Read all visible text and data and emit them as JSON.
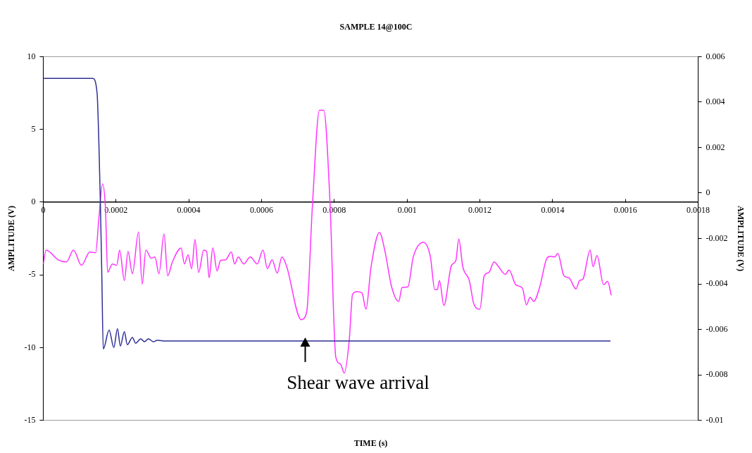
{
  "chart_data": {
    "type": "line",
    "title": "SAMPLE 14@100C",
    "xlabel": "TIME (s)",
    "ylabel": "AMPLITUDE (V)",
    "y2label": "AMPLITUDE (V)",
    "xlim": [
      0,
      0.0018
    ],
    "xticks": [
      0,
      0.0002,
      0.0004,
      0.0006,
      0.0008,
      0.001,
      0.0012,
      0.0014,
      0.0016,
      0.0018
    ],
    "ylim": [
      -15,
      10
    ],
    "yticks": [
      -15,
      -10,
      -5,
      0,
      5,
      10
    ],
    "y2lim": [
      -0.01,
      0.006
    ],
    "y2ticks": [
      -0.01,
      -0.008,
      -0.006,
      -0.004,
      -0.002,
      0,
      0.002,
      0.004,
      0.006
    ],
    "grid": false,
    "legend": false,
    "marker": "none",
    "line_style": "solid",
    "annotations": [
      {
        "text": "Shear wave arrival",
        "x": 0.00072,
        "y": -9.3
      }
    ],
    "series": [
      {
        "color": "#2e2e96",
        "x": [
          0,
          0.000136,
          0.000148,
          0.000153,
          0.000157,
          0.000161,
          0.000165,
          0.000181,
          0.000194,
          0.000204,
          0.000212,
          0.000223,
          0.000231,
          0.000245,
          0.000254,
          0.000268,
          0.000278,
          0.000289,
          0.000303,
          0.000313,
          0.000335,
          0.001559
        ],
        "values": [
          8.5,
          8.5,
          7.5,
          4,
          0,
          -5,
          -10.1,
          -8.8,
          -10,
          -8.7,
          -9.9,
          -8.9,
          -9.8,
          -9.3,
          -9.7,
          -9.4,
          -9.6,
          -9.4,
          -9.6,
          -9.5,
          -9.55,
          -9.55
        ]
      },
      {
        "color": "#ff33ff",
        "axis": "y2",
        "x": [
          0,
          8e-06,
          4.1e-05,
          6.4e-05,
          8.3e-05,
          0.000105,
          0.000128,
          0.000144,
          0.000153,
          0.000163,
          0.000171,
          0.000177,
          0.00019,
          0.000202,
          0.00021,
          0.000223,
          0.000233,
          0.000245,
          0.000262,
          0.000272,
          0.000282,
          0.000297,
          0.000307,
          0.000318,
          0.000332,
          0.000342,
          0.000355,
          0.000379,
          0.000388,
          0.000398,
          0.000408,
          0.000417,
          0.000427,
          0.000441,
          0.000449,
          0.000456,
          0.000466,
          0.000478,
          0.000487,
          0.000501,
          0.000517,
          0.000526,
          0.000536,
          0.000551,
          0.000569,
          0.000588,
          0.000604,
          0.000616,
          0.000629,
          0.000643,
          0.000656,
          0.000668,
          0.000709,
          0.000724,
          0.00074,
          0.000759,
          0.000771,
          0.000788,
          0.000804,
          0.000817,
          0.000827,
          0.000841,
          0.00085,
          0.000862,
          0.000876,
          0.000887,
          0.000901,
          0.000924,
          0.00094,
          0.000957,
          0.000977,
          0.000986,
          0.001002,
          0.001017,
          0.001045,
          0.001064,
          0.001076,
          0.001083,
          0.001089,
          0.001101,
          0.001122,
          0.001134,
          0.001142,
          0.001153,
          0.001171,
          0.001183,
          0.0012,
          0.001212,
          0.001225,
          0.001239,
          0.00125,
          0.00127,
          0.00128,
          0.001299,
          0.001317,
          0.001328,
          0.001338,
          0.001348,
          0.001365,
          0.001384,
          0.001394,
          0.001406,
          0.001414,
          0.001431,
          0.001445,
          0.001464,
          0.001474,
          0.001483,
          0.001503,
          0.001511,
          0.001522,
          0.00154,
          0.001551,
          0.001561
        ],
        "values": [
          -0.00312,
          -0.00251,
          -0.00294,
          -0.00303,
          -0.00251,
          -0.00318,
          -0.0026,
          -0.00263,
          -0.0011,
          0.0004,
          -0.00067,
          -0.00349,
          -0.00312,
          -0.00318,
          -0.00251,
          -0.00385,
          -0.00257,
          -0.00355,
          -0.00171,
          -0.00401,
          -0.00251,
          -0.00287,
          -0.00281,
          -0.00355,
          -0.0018,
          -0.00364,
          -0.00303,
          -0.00242,
          -0.00312,
          -0.00272,
          -0.00333,
          -0.00205,
          -0.00349,
          -0.00251,
          -0.00257,
          -0.00373,
          -0.00242,
          -0.00343,
          -0.00297,
          -0.00294,
          -0.0026,
          -0.00312,
          -0.00281,
          -0.00312,
          -0.00281,
          -0.00312,
          -0.00251,
          -0.00333,
          -0.00294,
          -0.00352,
          -0.00281,
          -0.00318,
          -0.00557,
          -0.00523,
          -0.00049,
          0.00364,
          0.00364,
          -0.00037,
          -0.00722,
          -0.00752,
          -0.00792,
          -0.00648,
          -0.00446,
          -0.00434,
          -0.0044,
          -0.00511,
          -0.00324,
          -0.00174,
          -0.00263,
          -0.0041,
          -0.00477,
          -0.00416,
          -0.00413,
          -0.00281,
          -0.00217,
          -0.00281,
          -0.00425,
          -0.00425,
          -0.00385,
          -0.00495,
          -0.00318,
          -0.00297,
          -0.00202,
          -0.00324,
          -0.00385,
          -0.00486,
          -0.00511,
          -0.00364,
          -0.00349,
          -0.00303,
          -0.00321,
          -0.00358,
          -0.00339,
          -0.00404,
          -0.00419,
          -0.00492,
          -0.00459,
          -0.00477,
          -0.0041,
          -0.00287,
          -0.00278,
          -0.00281,
          -0.00266,
          -0.00364,
          -0.00373,
          -0.00422,
          -0.00385,
          -0.00379,
          -0.00251,
          -0.00324,
          -0.00275,
          -0.00404,
          -0.00388,
          -0.0045
        ]
      }
    ]
  }
}
